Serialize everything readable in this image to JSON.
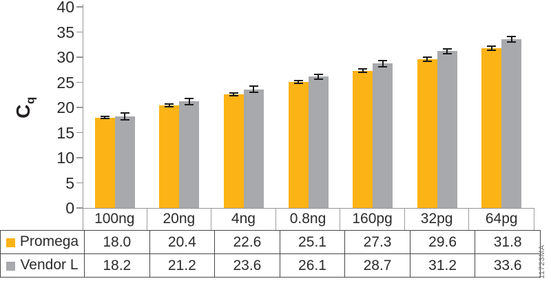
{
  "watermark": "11723MA",
  "chart_data": {
    "type": "bar",
    "title": "",
    "xlabel": "",
    "ylabel": "Cq",
    "ylabel_main": "C",
    "ylabel_sub": "q",
    "ylim": [
      0,
      40
    ],
    "yticks": [
      0,
      5,
      10,
      15,
      20,
      25,
      30,
      35,
      40
    ],
    "grid": false,
    "legend_position": "table-left",
    "categories": [
      "100ng",
      "20ng",
      "4ng",
      "0.8ng",
      "160pg",
      "32pg",
      "64pg"
    ],
    "series": [
      {
        "name": "Promega",
        "color": "#FCB315",
        "values": [
          18.0,
          20.4,
          22.6,
          25.1,
          27.3,
          29.6,
          31.8
        ],
        "errors": [
          0.1,
          0.1,
          0.15,
          0.15,
          0.2,
          0.3,
          0.25
        ]
      },
      {
        "name": "Vendor L",
        "color": "#A7A9AC",
        "values": [
          18.2,
          21.2,
          23.6,
          26.1,
          28.7,
          31.2,
          33.6
        ],
        "errors": [
          0.5,
          0.45,
          0.5,
          0.4,
          0.5,
          0.35,
          0.4
        ]
      }
    ],
    "axis_color": "#929497",
    "table_border_color": "#464648",
    "error_bar_color": "#1a1a1a",
    "text_color": "#2b2b2b"
  }
}
